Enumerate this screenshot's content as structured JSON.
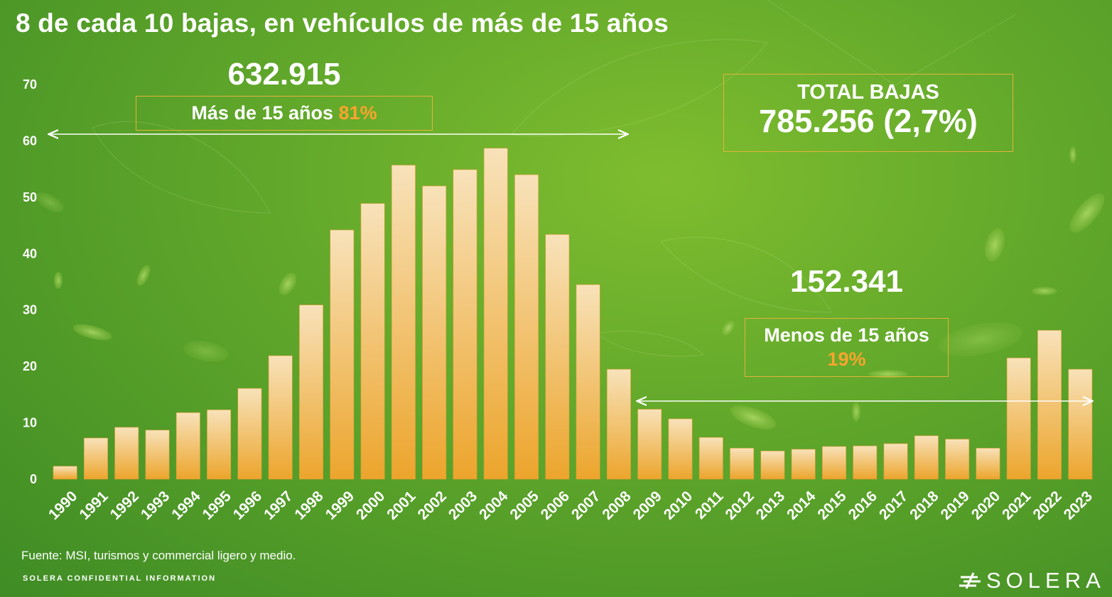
{
  "title": "8 de cada 10 bajas, en vehículos de más de 15 años",
  "left_group": {
    "total": "632.915",
    "label": "Más de 15 años",
    "percent": "81%"
  },
  "right_group": {
    "total": "152.341",
    "label": "Menos de 15 años",
    "percent": "19%"
  },
  "summary": {
    "label": "TOTAL BAJAS",
    "value": "785.256 (2,7%)"
  },
  "source": "Fuente: MSI, turismos y commercial ligero y medio.",
  "confidential": "SOLERA CONFIDENTIAL INFORMATION",
  "logo": {
    "text": "SOLERA",
    "icon": "solera-logo-icon"
  },
  "colors": {
    "bar_top": "#f8e2ba",
    "bar_bottom": "#eca52c",
    "box_border": "#e3b33a",
    "accent": "#f7a52e",
    "text": "#ffffff"
  },
  "chart_data": {
    "type": "bar",
    "title": "8 de cada 10 bajas, en vehículos de más de 15 años",
    "xlabel": "",
    "ylabel": "",
    "ylim": [
      0,
      70
    ],
    "yticks": [
      0,
      10,
      20,
      30,
      40,
      50,
      60,
      70
    ],
    "grid": false,
    "categories": [
      "1990",
      "1991",
      "1992",
      "1993",
      "1994",
      "1995",
      "1996",
      "1997",
      "1998",
      "1999",
      "2000",
      "2001",
      "2002",
      "2003",
      "2004",
      "2005",
      "2006",
      "2007",
      "2008",
      "2009",
      "2010",
      "2011",
      "2012",
      "2013",
      "2014",
      "2015",
      "2016",
      "2017",
      "2018",
      "2019",
      "2020",
      "2021",
      "2022",
      "2023"
    ],
    "values": [
      2.3,
      7.3,
      9.2,
      8.7,
      11.8,
      12.3,
      16.1,
      21.9,
      30.9,
      44.2,
      48.9,
      55.7,
      52.0,
      54.9,
      58.7,
      54.0,
      43.4,
      34.5,
      19.5,
      12.4,
      10.7,
      7.4,
      5.5,
      5.0,
      5.3,
      5.8,
      5.9,
      6.3,
      7.7,
      7.1,
      5.5,
      21.5,
      26.4,
      19.5
    ]
  }
}
